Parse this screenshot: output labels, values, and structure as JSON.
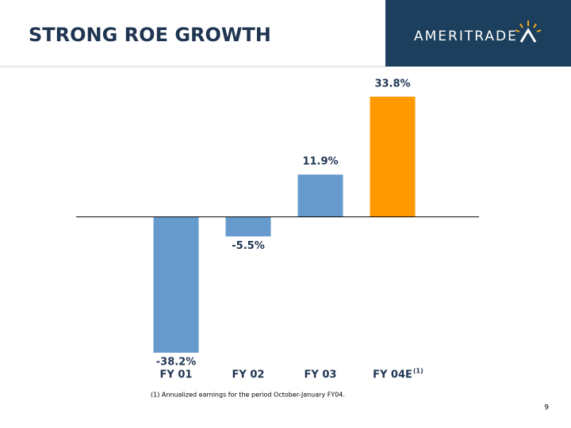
{
  "header": {
    "title": "STRONG ROE GROWTH",
    "logo": "AMERITRADE"
  },
  "chart_data": {
    "type": "bar",
    "categories": [
      "FY 01",
      "FY 02",
      "FY 03",
      "FY 04E"
    ],
    "category_notes": [
      null,
      null,
      null,
      "(1)"
    ],
    "values": [
      -38.2,
      -5.5,
      11.9,
      33.8
    ],
    "value_labels": [
      "-38.2%",
      "-5.5%",
      "11.9%",
      "33.8%"
    ],
    "colors": [
      "#6699cc",
      "#6699cc",
      "#6699cc",
      "#ff9900"
    ]
  },
  "footnote": "(1) Annualized earnings for the period October-January FY04.",
  "page_number": "9"
}
